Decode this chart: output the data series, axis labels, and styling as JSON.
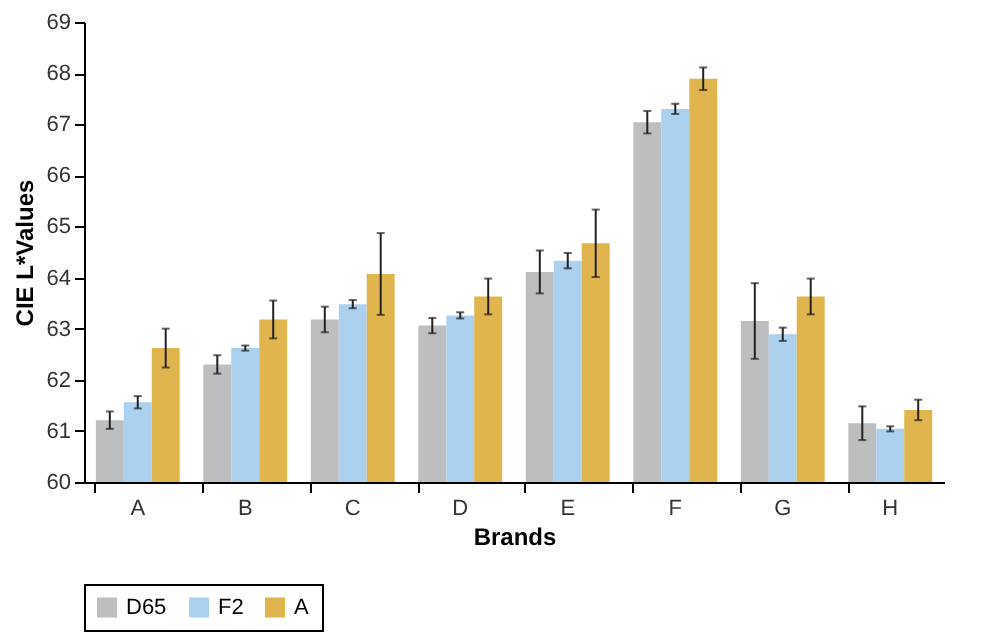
{
  "chart_data": {
    "type": "bar",
    "xlabel": "Brands",
    "ylabel": "CIE L*Values",
    "categories": [
      "A",
      "B",
      "C",
      "D",
      "E",
      "F",
      "G",
      "H"
    ],
    "series": [
      {
        "name": "D65",
        "color": "#bcbec0",
        "values": [
          61.21,
          62.3,
          63.18,
          63.06,
          64.11,
          67.04,
          63.15,
          61.15
        ],
        "errors": [
          0.17,
          0.18,
          0.25,
          0.15,
          0.42,
          0.22,
          0.74,
          0.33
        ]
      },
      {
        "name": "F2",
        "color": "#abd1ef",
        "values": [
          61.56,
          62.62,
          63.48,
          63.26,
          64.33,
          67.3,
          62.89,
          61.04
        ],
        "errors": [
          0.12,
          0.05,
          0.08,
          0.06,
          0.15,
          0.1,
          0.13,
          0.05
        ]
      },
      {
        "name": "A",
        "color": "#e0b54e",
        "values": [
          62.62,
          63.18,
          64.07,
          63.63,
          64.67,
          67.89,
          63.63,
          61.41
        ],
        "errors": [
          0.38,
          0.37,
          0.8,
          0.35,
          0.66,
          0.22,
          0.35,
          0.2
        ]
      }
    ],
    "ylim": [
      60,
      69
    ],
    "yticks": [
      60,
      61,
      62,
      63,
      64,
      65,
      66,
      67,
      68,
      69
    ],
    "grid": false,
    "legend": "bottom"
  }
}
